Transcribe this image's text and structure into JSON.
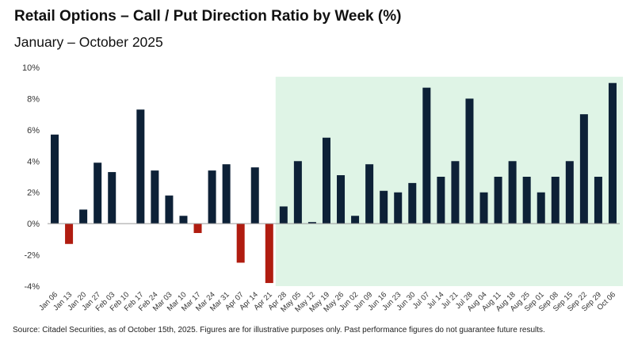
{
  "title": "Retail Options – Call / Put Direction Ratio by Week (%)",
  "subtitle": "January – October 2025",
  "source": "Source: Citadel Securities, as of October 15th, 2025. Figures are for illustrative purposes only. Past performance figures do not guarantee future results.",
  "colors": {
    "positive": "#0d2137",
    "negative": "#b01c10",
    "highlight": "#dff4e6",
    "axis": "#9a9a9a"
  },
  "chart_data": {
    "type": "bar",
    "title": "Retail Options – Call / Put Direction Ratio by Week (%)",
    "subtitle": "January – October 2025",
    "xlabel": "",
    "ylabel": "",
    "ylim": [
      -4,
      10
    ],
    "yticks": [
      -4,
      -2,
      0,
      2,
      4,
      6,
      8,
      10
    ],
    "ytick_labels": [
      "-4%",
      "-2%",
      "0%",
      "2%",
      "4%",
      "6%",
      "8%",
      "10%"
    ],
    "grid": false,
    "highlight_range": {
      "from": "Apr 28",
      "to": "Oct 06"
    },
    "categories": [
      "Jan 06",
      "Jan 13",
      "Jan 20",
      "Jan 27",
      "Feb 03",
      "Feb 10",
      "Feb 17",
      "Feb 24",
      "Mar 03",
      "Mar 10",
      "Mar 17",
      "Mar 24",
      "Mar 31",
      "Apr 07",
      "Apr 14",
      "Apr 21",
      "Apr 28",
      "May 05",
      "May 12",
      "May 19",
      "May 26",
      "Jun 02",
      "Jun 09",
      "Jun 16",
      "Jun 23",
      "Jun 30",
      "Jul 07",
      "Jul 14",
      "Jul 21",
      "Jul 28",
      "Aug 04",
      "Aug 11",
      "Aug 18",
      "Aug 25",
      "Sep 01",
      "Sep 08",
      "Sep 15",
      "Sep 22",
      "Sep 29",
      "Oct 06"
    ],
    "values": [
      5.7,
      -1.3,
      0.9,
      3.9,
      3.3,
      0.0,
      7.3,
      3.4,
      1.8,
      0.5,
      -0.6,
      3.4,
      3.8,
      -2.5,
      3.6,
      -3.8,
      1.1,
      4.0,
      0.1,
      5.5,
      3.1,
      0.5,
      3.8,
      2.1,
      2.0,
      2.6,
      8.7,
      3.0,
      4.0,
      8.0,
      2.0,
      3.0,
      4.0,
      3.0,
      2.0,
      3.0,
      4.0,
      7.0,
      3.0,
      9.0
    ]
  }
}
